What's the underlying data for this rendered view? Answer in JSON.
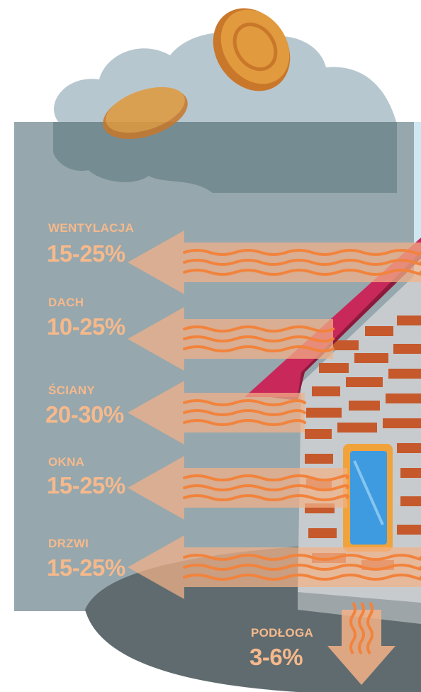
{
  "colors": {
    "panel": "#93a4aa",
    "cloud_light": "#b7c7cf",
    "cloud_dark": "#4f6a70",
    "ground": "#5f6b6f",
    "heat_wave": "#f2833c",
    "arrow": "#f3b188",
    "label": "#f6b98c",
    "roof": "#c8285a",
    "brick": "#c5592b",
    "wall": "#c7cbce",
    "window": "#3f9be0",
    "window_frame": "#f1a33b",
    "coin": "#e19a3d"
  },
  "heat_loss": [
    {
      "name": "WENTYLACJA",
      "range": "15-25%"
    },
    {
      "name": "DACH",
      "range": "10-25%"
    },
    {
      "name": "ŚCIANY",
      "range": "20-30%"
    },
    {
      "name": "OKNA",
      "range": "15-25%"
    },
    {
      "name": "DRZWI",
      "range": "15-25%"
    },
    {
      "name": "PODŁOGA",
      "range": "3-6%"
    }
  ]
}
